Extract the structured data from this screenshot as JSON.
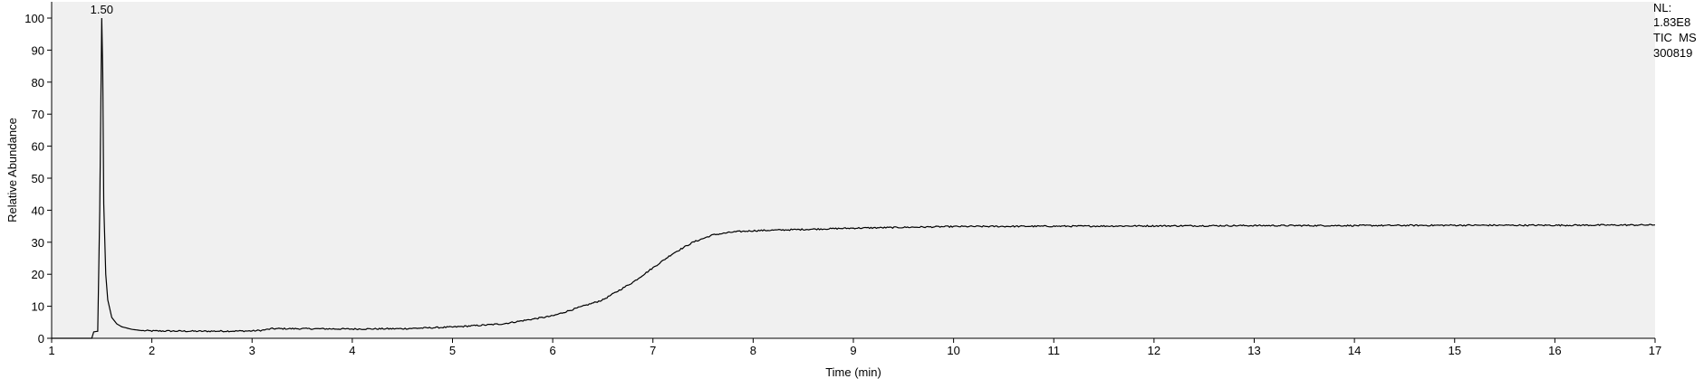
{
  "chart_data": {
    "type": "line",
    "title": "",
    "xlabel": "Time (min)",
    "ylabel": "Relative Abundance",
    "xlim": [
      1,
      17
    ],
    "ylim": [
      0,
      100
    ],
    "x_ticks": [
      1,
      2,
      3,
      4,
      5,
      6,
      7,
      8,
      9,
      10,
      11,
      12,
      13,
      14,
      15,
      16,
      17
    ],
    "y_ticks": [
      0,
      10,
      20,
      30,
      40,
      50,
      60,
      70,
      80,
      90,
      100
    ],
    "grid": false,
    "background": "#f0f0f0",
    "line_color": "#000000",
    "peak_annotations": [
      {
        "x": 1.5,
        "y": 100,
        "label": "1.50"
      }
    ],
    "info_lines": [
      "NL:",
      "1.83E8",
      "TIC  MS",
      "300819"
    ],
    "series": [
      {
        "points": [
          [
            1.0,
            0.0
          ],
          [
            1.4,
            0.0
          ],
          [
            1.42,
            2.0
          ],
          [
            1.46,
            2.2
          ],
          [
            1.48,
            40
          ],
          [
            1.5,
            100
          ],
          [
            1.51,
            83
          ],
          [
            1.52,
            42
          ],
          [
            1.54,
            20
          ],
          [
            1.56,
            12
          ],
          [
            1.6,
            6.5
          ],
          [
            1.65,
            4.5
          ],
          [
            1.7,
            3.6
          ],
          [
            1.8,
            2.8
          ],
          [
            1.9,
            2.4
          ],
          [
            2.0,
            2.3
          ],
          [
            2.5,
            2.2
          ],
          [
            3.0,
            2.3
          ],
          [
            3.1,
            2.5
          ],
          [
            3.2,
            3.0
          ],
          [
            3.5,
            3.0
          ],
          [
            4.0,
            2.9
          ],
          [
            4.5,
            3.0
          ],
          [
            5.0,
            3.5
          ],
          [
            5.5,
            4.5
          ],
          [
            6.0,
            7.0
          ],
          [
            6.5,
            12.0
          ],
          [
            6.8,
            17.5
          ],
          [
            7.0,
            22.0
          ],
          [
            7.2,
            26.5
          ],
          [
            7.4,
            30.0
          ],
          [
            7.6,
            32.3
          ],
          [
            7.8,
            33.2
          ],
          [
            8.0,
            33.6
          ],
          [
            8.5,
            34.0
          ],
          [
            9.0,
            34.4
          ],
          [
            10.0,
            34.9
          ],
          [
            11.0,
            35.0
          ],
          [
            12.0,
            35.1
          ],
          [
            13.0,
            35.2
          ],
          [
            14.0,
            35.2
          ],
          [
            15.0,
            35.3
          ],
          [
            16.0,
            35.3
          ],
          [
            17.0,
            35.4
          ]
        ]
      }
    ]
  }
}
